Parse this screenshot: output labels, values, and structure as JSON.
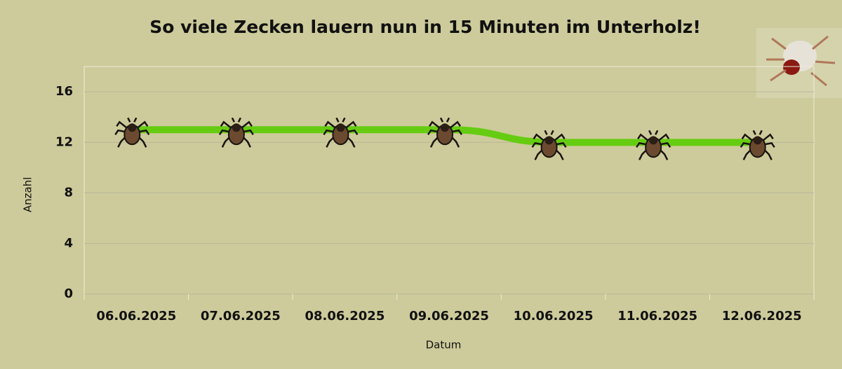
{
  "chart_data": {
    "type": "line",
    "title": "So viele Zecken lauern nun in 15 Minuten im Unterholz!",
    "x_label": "Datum",
    "y_label": "Anzahl",
    "categories": [
      "06.06.2025",
      "07.06.2025",
      "08.06.2025",
      "09.06.2025",
      "10.06.2025",
      "11.06.2025",
      "12.06.2025"
    ],
    "values": [
      13,
      13,
      13,
      13,
      12,
      12,
      12
    ],
    "color": "#66cc11",
    "ylim": [
      0,
      18
    ],
    "yticks": [
      0,
      4,
      8,
      12,
      16
    ],
    "grid": true
  }
}
